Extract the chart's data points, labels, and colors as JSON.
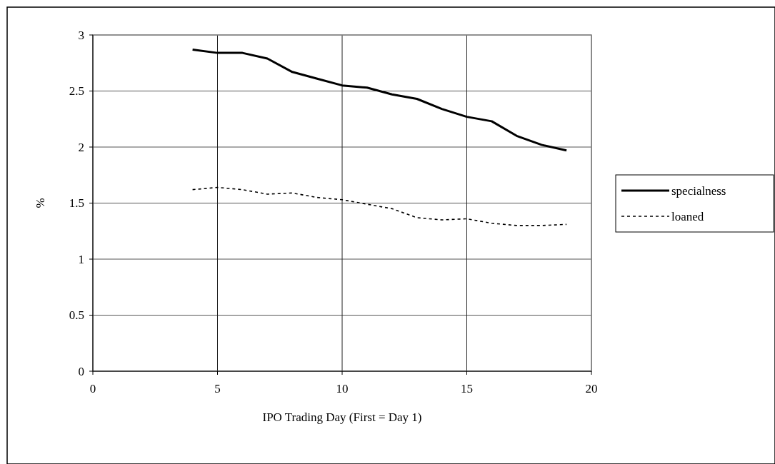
{
  "chart_data": {
    "type": "line",
    "xlabel": "IPO Trading Day (First = Day 1)",
    "ylabel": "%",
    "x": [
      4,
      5,
      6,
      7,
      8,
      9,
      10,
      11,
      12,
      13,
      14,
      15,
      16,
      17,
      18,
      19
    ],
    "series": [
      {
        "name": "specialness",
        "color": "#000000",
        "line_style": "solid",
        "values": [
          2.87,
          2.84,
          2.84,
          2.79,
          2.67,
          2.61,
          2.55,
          2.53,
          2.47,
          2.43,
          2.34,
          2.27,
          2.23,
          2.1,
          2.02,
          1.97
        ]
      },
      {
        "name": "loaned",
        "color": "#000000",
        "line_style": "dotted",
        "values": [
          1.62,
          1.64,
          1.62,
          1.58,
          1.59,
          1.55,
          1.53,
          1.49,
          1.45,
          1.37,
          1.35,
          1.36,
          1.32,
          1.3,
          1.3,
          1.31
        ]
      }
    ],
    "xlim": [
      0,
      20
    ],
    "xticks": [
      0,
      5,
      10,
      15,
      20
    ],
    "ylim": [
      0,
      3
    ],
    "yticks": [
      0,
      0.5,
      1,
      1.5,
      2,
      2.5,
      3
    ],
    "grid": true,
    "legend": "right",
    "marker": "none"
  }
}
